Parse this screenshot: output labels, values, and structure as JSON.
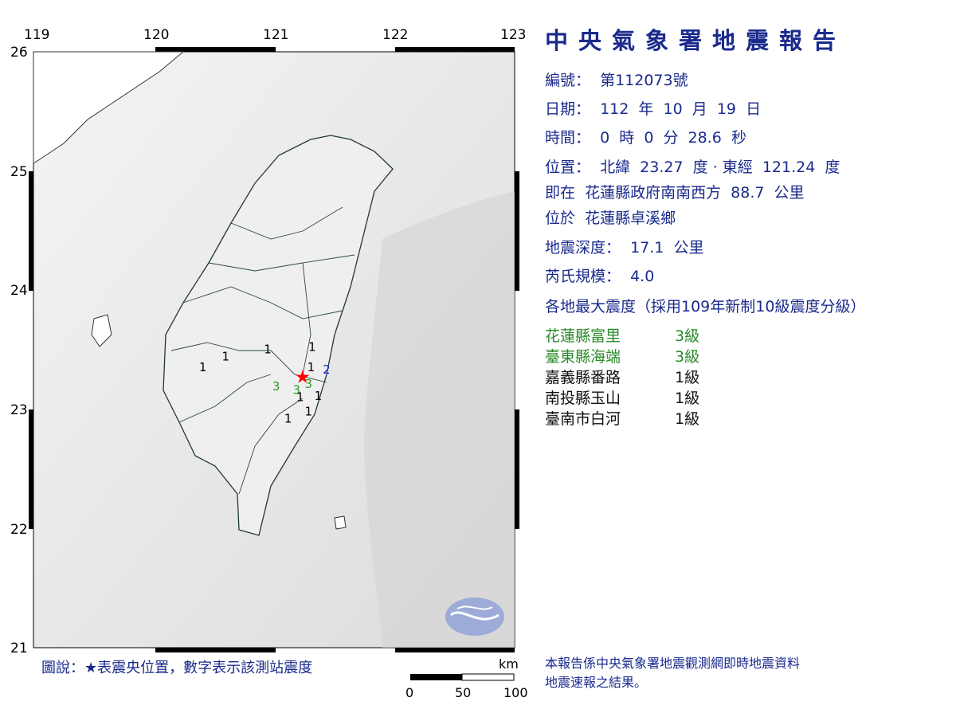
{
  "map": {
    "lon_ticks": [
      "119",
      "120",
      "121",
      "122",
      "123"
    ],
    "lat_ticks": [
      "26",
      "25",
      "24",
      "23",
      "22",
      "21"
    ],
    "lon_range": [
      119,
      123
    ],
    "lat_range": [
      21,
      26
    ],
    "epicenter": {
      "lat": 23.27,
      "lon": 121.24,
      "icon": "red-star",
      "color": "#ff0000"
    },
    "stations": [
      {
        "lon": 120.41,
        "lat": 23.36,
        "intensity": "1",
        "color": "#000000"
      },
      {
        "lon": 120.6,
        "lat": 23.45,
        "intensity": "1",
        "color": "#000000"
      },
      {
        "lon": 120.95,
        "lat": 23.51,
        "intensity": "1",
        "color": "#000000"
      },
      {
        "lon": 121.32,
        "lat": 23.53,
        "intensity": "1",
        "color": "#000000"
      },
      {
        "lon": 121.31,
        "lat": 23.36,
        "intensity": "1",
        "color": "#000000"
      },
      {
        "lon": 121.44,
        "lat": 23.34,
        "intensity": "2",
        "color": "#1a2ad0"
      },
      {
        "lon": 121.02,
        "lat": 23.2,
        "intensity": "3",
        "color": "#2a9a2a"
      },
      {
        "lon": 121.19,
        "lat": 23.17,
        "intensity": "3",
        "color": "#2a9a2a"
      },
      {
        "lon": 121.29,
        "lat": 23.22,
        "intensity": "3",
        "color": "#2a9a2a"
      },
      {
        "lon": 121.22,
        "lat": 23.11,
        "intensity": "1",
        "color": "#000000"
      },
      {
        "lon": 121.37,
        "lat": 23.12,
        "intensity": "1",
        "color": "#000000"
      },
      {
        "lon": 121.29,
        "lat": 22.99,
        "intensity": "1",
        "color": "#000000"
      },
      {
        "lon": 121.12,
        "lat": 22.93,
        "intensity": "1",
        "color": "#000000"
      }
    ],
    "legend": "圖說：★表震央位置，數字表示該測站震度",
    "scale": {
      "unit": "km",
      "labels": [
        "0",
        "50",
        "100"
      ]
    }
  },
  "report": {
    "title": "中央氣象署地震報告",
    "number": "編號：  第112073號",
    "date": "日期：  112  年  10  月  19  日",
    "time": "時間：  0  時  0  分  28.6  秒",
    "location": "位置：  北緯  23.27  度 · 東經  121.24  度",
    "relative": "即在  花蓮縣政府南南西方  88.7  公里",
    "township": "位於  花蓮縣卓溪鄉",
    "depth": "地震深度：  17.1  公里",
    "magnitude": "芮氏規模：  4.0",
    "intensity_header": "各地最大震度（採用109年新制10級震度分級）",
    "intensities": [
      {
        "place": "花蓮縣富里",
        "level": "3級",
        "color": "#2a8a2a"
      },
      {
        "place": "臺東縣海端",
        "level": "3級",
        "color": "#2a8a2a"
      },
      {
        "place": "嘉義縣番路",
        "level": "1級",
        "color": "#111111"
      },
      {
        "place": "南投縣玉山",
        "level": "1級",
        "color": "#111111"
      },
      {
        "place": "臺南市白河",
        "level": "1級",
        "color": "#111111"
      }
    ],
    "footnote": [
      "本報告係中央氣象署地震觀測網即時地震資料",
      "地震速報之結果。"
    ]
  }
}
